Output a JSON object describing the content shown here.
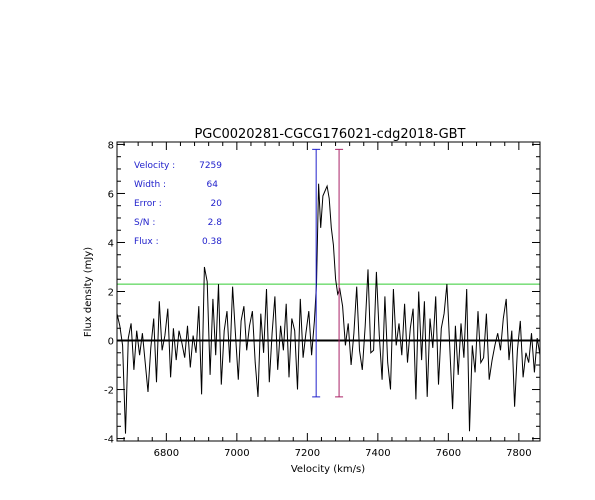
{
  "chart_data": {
    "type": "line",
    "title": "PGC0020281-CGCG176021-cdg2018-GBT",
    "xlabel": "Velocity (km/s)",
    "ylabel": "Flux density (mJy)",
    "xlim": [
      6660,
      7860
    ],
    "ylim": [
      -4.1,
      8.1
    ],
    "x_ticks": [
      6800,
      7000,
      7200,
      7400,
      7600,
      7800
    ],
    "y_ticks": [
      -4,
      -2,
      0,
      2,
      4,
      6,
      8
    ],
    "grid": false,
    "colors": {
      "spectrum": "#000000",
      "zero_line": "#000000",
      "rms_line": "#33cc33",
      "marker_left": "#2222cc",
      "marker_right": "#aa2266",
      "annotation": "#2222cc"
    },
    "annotations": [
      {
        "label": "Velocity :",
        "value": "7259"
      },
      {
        "label": "Width :",
        "value": "64"
      },
      {
        "label": "Error :",
        "value": "20"
      },
      {
        "label": "S/N :",
        "value": "2.8"
      },
      {
        "label": "Flux :",
        "value": "0.38"
      }
    ],
    "horizontal_lines": [
      {
        "y": 0,
        "color": "#000000"
      },
      {
        "y": 2.3,
        "color": "#33cc33"
      }
    ],
    "vertical_markers": [
      {
        "x": 7225,
        "y_top": 7.8,
        "y_bottom": -2.3,
        "color": "#2222cc"
      },
      {
        "x": 7290,
        "y_top": 7.8,
        "y_bottom": -2.3,
        "color": "#aa2266"
      }
    ],
    "series": [
      {
        "x": [
          6660,
          6668,
          6676,
          6684,
          6692,
          6700,
          6708,
          6716,
          6724,
          6732,
          6740,
          6748,
          6756,
          6764,
          6772,
          6780,
          6788,
          6796,
          6804,
          6812,
          6820,
          6828,
          6836,
          6844,
          6852,
          6860,
          6868,
          6876,
          6884,
          6892,
          6900,
          6908,
          6916,
          6924,
          6932,
          6940,
          6948,
          6956,
          6964,
          6972,
          6980,
          6988,
          6996,
          7004,
          7012,
          7020,
          7028,
          7036,
          7044,
          7052,
          7060,
          7068,
          7076,
          7084,
          7092,
          7100,
          7108,
          7116,
          7124,
          7132,
          7140,
          7148,
          7156,
          7164,
          7172,
          7180,
          7188,
          7196,
          7204,
          7212,
          7220,
          7226,
          7232,
          7238,
          7244,
          7250,
          7256,
          7262,
          7268,
          7274,
          7280,
          7286,
          7292,
          7300,
          7308,
          7316,
          7324,
          7332,
          7340,
          7348,
          7356,
          7364,
          7372,
          7380,
          7388,
          7396,
          7404,
          7412,
          7420,
          7428,
          7436,
          7444,
          7452,
          7460,
          7468,
          7476,
          7484,
          7492,
          7500,
          7508,
          7516,
          7524,
          7532,
          7540,
          7548,
          7556,
          7564,
          7572,
          7580,
          7588,
          7596,
          7604,
          7612,
          7620,
          7628,
          7636,
          7644,
          7652,
          7660,
          7668,
          7676,
          7684,
          7692,
          7700,
          7708,
          7716,
          7724,
          7732,
          7740,
          7748,
          7756,
          7764,
          7772,
          7780,
          7788,
          7796,
          7804,
          7812,
          7820,
          7828,
          7836,
          7844,
          7852,
          7860
        ],
        "values": [
          1.1,
          0.6,
          -0.2,
          -3.8,
          0.1,
          0.7,
          -1.2,
          0.4,
          -0.6,
          0.3,
          -0.9,
          -2.1,
          -0.3,
          0.9,
          -1.7,
          1.6,
          -0.4,
          0.2,
          1.3,
          -1.5,
          0.5,
          -0.8,
          0.4,
          -0.1,
          -0.7,
          0.6,
          -1.1,
          0.2,
          -0.5,
          1.4,
          -2.2,
          3.0,
          2.4,
          -1.4,
          1.7,
          -0.6,
          2.3,
          -1.8,
          0.4,
          1.2,
          -0.9,
          2.2,
          0.3,
          -1.6,
          0.8,
          1.4,
          -0.4,
          0.6,
          1.2,
          -0.9,
          -2.3,
          1.1,
          -0.5,
          2.1,
          -1.7,
          0.3,
          1.8,
          -1.2,
          0.6,
          -0.4,
          1.5,
          -1.5,
          0.9,
          0.4,
          -2.0,
          1.7,
          -0.7,
          0.3,
          1.2,
          -0.6,
          0.8,
          2.3,
          6.4,
          4.6,
          5.9,
          6.1,
          6.3,
          5.8,
          4.6,
          3.9,
          2.5,
          1.9,
          2.1,
          1.4,
          -0.2,
          0.7,
          -1.0,
          0.3,
          2.2,
          -0.4,
          -1.2,
          0.6,
          2.9,
          -0.5,
          -0.4,
          2.8,
          0.2,
          -1.6,
          1.8,
          -0.9,
          -2.0,
          2.1,
          -0.2,
          0.7,
          -0.6,
          1.5,
          -0.9,
          0.5,
          1.3,
          -2.4,
          2.0,
          -0.8,
          1.6,
          -2.3,
          0.9,
          -0.3,
          1.8,
          -1.8,
          0.5,
          1.1,
          2.3,
          -0.3,
          -2.8,
          0.6,
          -1.4,
          0.7,
          -0.7,
          2.1,
          -3.7,
          -0.2,
          -1.3,
          1.2,
          -0.9,
          -0.7,
          1.1,
          -1.6,
          -0.8,
          -0.2,
          0.3,
          -0.4,
          0.9,
          1.7,
          -0.8,
          0.4,
          -2.7,
          -0.4,
          0.8,
          -1.5,
          -0.5,
          -0.9,
          0.3,
          -1.3,
          0.1,
          -0.6
        ]
      }
    ]
  }
}
